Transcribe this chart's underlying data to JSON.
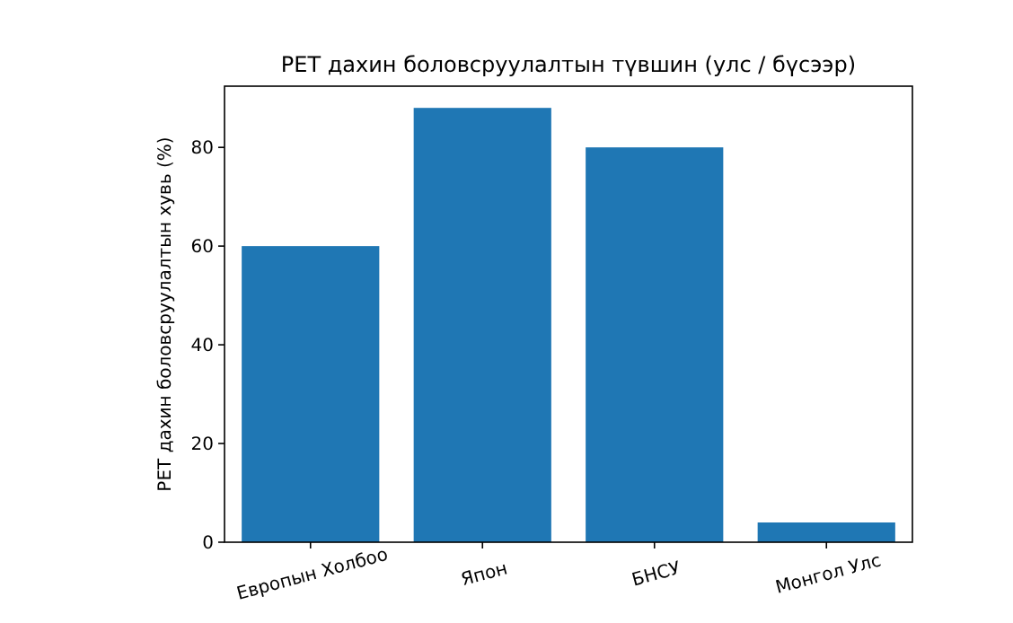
{
  "chart_data": {
    "type": "bar",
    "title": "PET дахин боловсруулалтын түвшин (улс / бүсээр)",
    "ylabel": "PET дахин боловсруулалтын хувь (%)",
    "categories": [
      "Европын Холбоо",
      "Япон",
      "БНСУ",
      "Монгол Улс"
    ],
    "values": [
      60,
      88,
      80,
      4
    ],
    "color": "#1f77b4",
    "ylim": [
      0,
      92.4
    ],
    "yticks": [
      0,
      20,
      40,
      60,
      80
    ]
  }
}
